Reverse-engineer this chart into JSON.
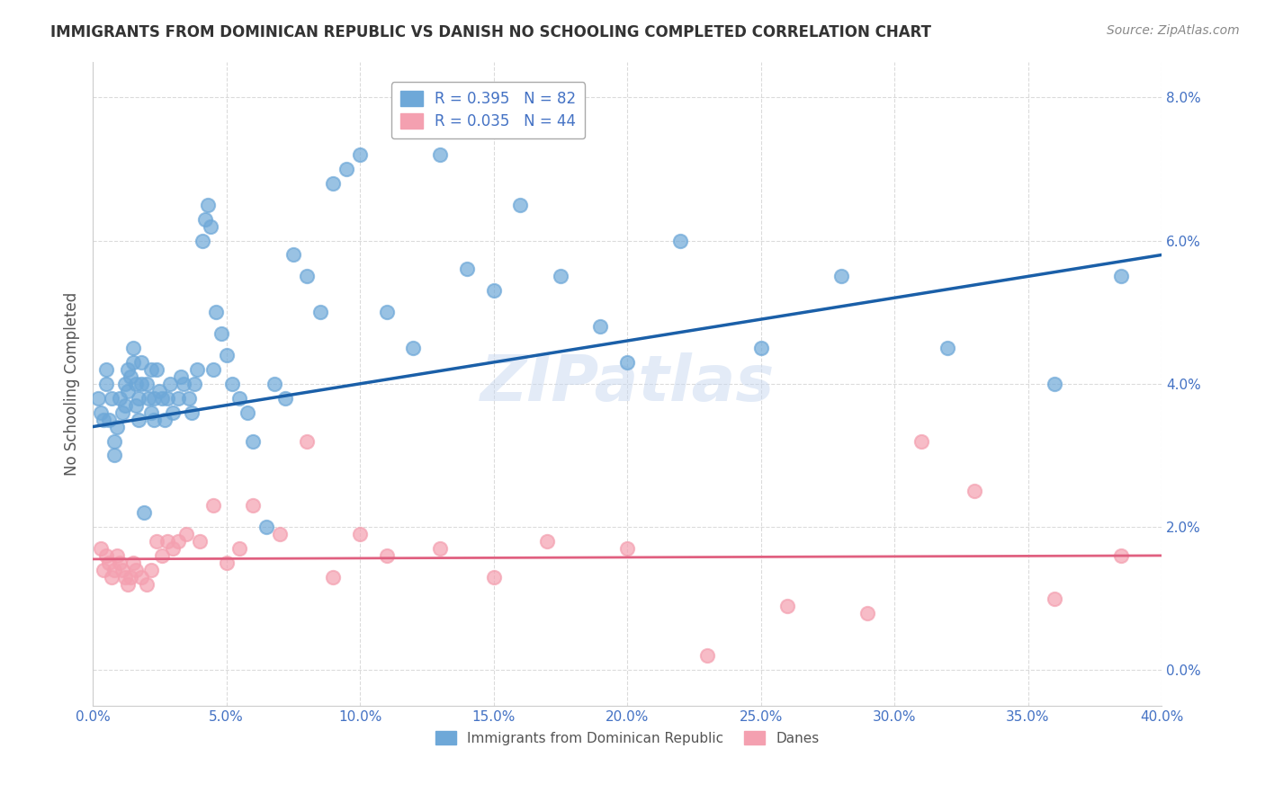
{
  "title": "IMMIGRANTS FROM DOMINICAN REPUBLIC VS DANISH NO SCHOOLING COMPLETED CORRELATION CHART",
  "source": "Source: ZipAtlas.com",
  "xlabel": "",
  "ylabel": "No Schooling Completed",
  "xlim": [
    0.0,
    0.4
  ],
  "ylim": [
    -0.005,
    0.085
  ],
  "yticks": [
    0.0,
    0.02,
    0.04,
    0.06,
    0.08
  ],
  "xticks": [
    0.0,
    0.05,
    0.1,
    0.15,
    0.2,
    0.25,
    0.3,
    0.35,
    0.4
  ],
  "blue_r": 0.395,
  "blue_n": 82,
  "pink_r": 0.035,
  "pink_n": 44,
  "blue_color": "#6EA8D8",
  "pink_color": "#F4A0B0",
  "blue_line_color": "#1A5FA8",
  "pink_line_color": "#E06080",
  "watermark": "ZIPatlas",
  "legend_label_blue": "Immigrants from Dominican Republic",
  "legend_label_pink": "Danes",
  "blue_scatter_x": [
    0.002,
    0.003,
    0.004,
    0.005,
    0.005,
    0.006,
    0.007,
    0.008,
    0.008,
    0.009,
    0.01,
    0.011,
    0.012,
    0.012,
    0.013,
    0.013,
    0.014,
    0.015,
    0.015,
    0.016,
    0.016,
    0.017,
    0.017,
    0.018,
    0.018,
    0.019,
    0.02,
    0.021,
    0.022,
    0.022,
    0.023,
    0.023,
    0.024,
    0.025,
    0.026,
    0.027,
    0.028,
    0.029,
    0.03,
    0.032,
    0.033,
    0.034,
    0.036,
    0.037,
    0.038,
    0.039,
    0.041,
    0.042,
    0.043,
    0.044,
    0.045,
    0.046,
    0.048,
    0.05,
    0.052,
    0.055,
    0.058,
    0.06,
    0.065,
    0.068,
    0.072,
    0.075,
    0.08,
    0.085,
    0.09,
    0.095,
    0.1,
    0.11,
    0.12,
    0.13,
    0.14,
    0.15,
    0.16,
    0.175,
    0.19,
    0.2,
    0.22,
    0.25,
    0.28,
    0.32,
    0.36,
    0.385
  ],
  "blue_scatter_y": [
    0.038,
    0.036,
    0.035,
    0.04,
    0.042,
    0.035,
    0.038,
    0.03,
    0.032,
    0.034,
    0.038,
    0.036,
    0.037,
    0.04,
    0.042,
    0.039,
    0.041,
    0.043,
    0.045,
    0.037,
    0.04,
    0.035,
    0.038,
    0.04,
    0.043,
    0.022,
    0.04,
    0.038,
    0.036,
    0.042,
    0.035,
    0.038,
    0.042,
    0.039,
    0.038,
    0.035,
    0.038,
    0.04,
    0.036,
    0.038,
    0.041,
    0.04,
    0.038,
    0.036,
    0.04,
    0.042,
    0.06,
    0.063,
    0.065,
    0.062,
    0.042,
    0.05,
    0.047,
    0.044,
    0.04,
    0.038,
    0.036,
    0.032,
    0.02,
    0.04,
    0.038,
    0.058,
    0.055,
    0.05,
    0.068,
    0.07,
    0.072,
    0.05,
    0.045,
    0.072,
    0.056,
    0.053,
    0.065,
    0.055,
    0.048,
    0.043,
    0.06,
    0.045,
    0.055,
    0.045,
    0.04,
    0.055
  ],
  "pink_scatter_x": [
    0.003,
    0.004,
    0.005,
    0.006,
    0.007,
    0.008,
    0.009,
    0.01,
    0.011,
    0.012,
    0.013,
    0.014,
    0.015,
    0.016,
    0.018,
    0.02,
    0.022,
    0.024,
    0.026,
    0.028,
    0.03,
    0.032,
    0.035,
    0.04,
    0.045,
    0.05,
    0.055,
    0.06,
    0.07,
    0.08,
    0.09,
    0.1,
    0.11,
    0.13,
    0.15,
    0.17,
    0.2,
    0.23,
    0.26,
    0.29,
    0.31,
    0.33,
    0.36,
    0.385
  ],
  "pink_scatter_y": [
    0.017,
    0.014,
    0.016,
    0.015,
    0.013,
    0.014,
    0.016,
    0.015,
    0.014,
    0.013,
    0.012,
    0.013,
    0.015,
    0.014,
    0.013,
    0.012,
    0.014,
    0.018,
    0.016,
    0.018,
    0.017,
    0.018,
    0.019,
    0.018,
    0.023,
    0.015,
    0.017,
    0.023,
    0.019,
    0.032,
    0.013,
    0.019,
    0.016,
    0.017,
    0.013,
    0.018,
    0.017,
    0.002,
    0.009,
    0.008,
    0.032,
    0.025,
    0.01,
    0.016
  ],
  "blue_line_x0": 0.0,
  "blue_line_y0": 0.034,
  "blue_line_x1": 0.4,
  "blue_line_y1": 0.058,
  "pink_line_x0": 0.0,
  "pink_line_y0": 0.0155,
  "pink_line_x1": 0.4,
  "pink_line_y1": 0.016
}
